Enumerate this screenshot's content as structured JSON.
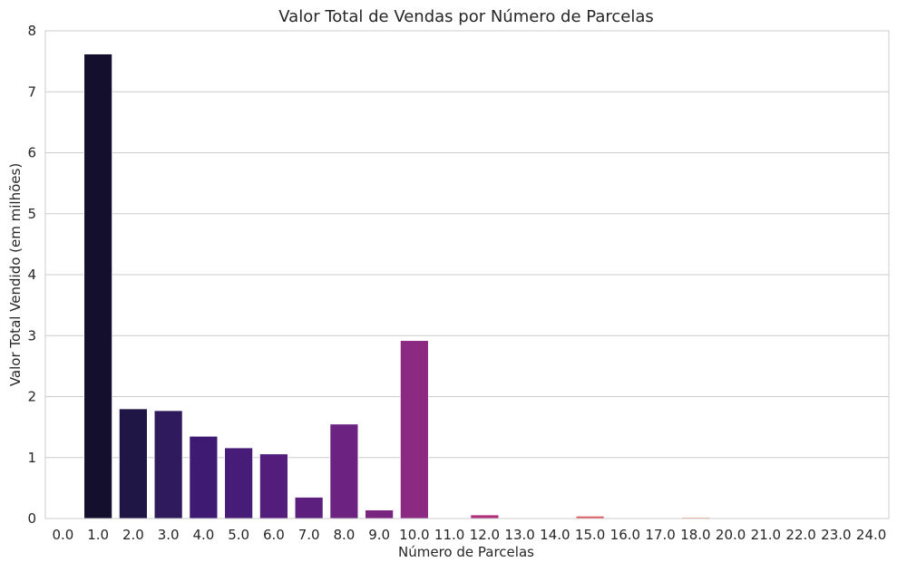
{
  "chart_data": {
    "type": "bar",
    "title": "Valor Total de Vendas por Número de Parcelas",
    "xlabel": "Número de Parcelas",
    "ylabel": "Valor Total Vendido (em milhões)",
    "ylim": [
      0,
      8
    ],
    "yticks": [
      "0",
      "1",
      "2",
      "3",
      "4",
      "5",
      "6",
      "7",
      "8"
    ],
    "grid": "horizontal",
    "categories": [
      "0.0",
      "1.0",
      "2.0",
      "3.0",
      "4.0",
      "5.0",
      "6.0",
      "7.0",
      "8.0",
      "9.0",
      "10.0",
      "11.0",
      "12.0",
      "13.0",
      "14.0",
      "15.0",
      "16.0",
      "17.0",
      "18.0",
      "20.0",
      "21.0",
      "22.0",
      "23.0",
      "24.0"
    ],
    "values": [
      0.0,
      7.62,
      1.8,
      1.77,
      1.35,
      1.16,
      1.06,
      0.35,
      1.55,
      0.14,
      2.92,
      0.005,
      0.06,
      0.004,
      0.005,
      0.04,
      0.005,
      0.004,
      0.02,
      0.003,
      0.003,
      0.003,
      0.003,
      0.01
    ],
    "colors": [
      "#03051a",
      "#130f2d",
      "#1f1646",
      "#2f1a5e",
      "#3e1a72",
      "#471b78",
      "#521d7b",
      "#5c1f7e",
      "#6c2280",
      "#7a2481",
      "#8c2981",
      "#a52c7b",
      "#b0307b",
      "#c43a73",
      "#d24b6a",
      "#de5961",
      "#e8685b",
      "#ef7d5c",
      "#f49268",
      "#f6a47a",
      "#f7b38f",
      "#f8c1a1",
      "#f9d0b6",
      "#fbe1cf"
    ]
  }
}
